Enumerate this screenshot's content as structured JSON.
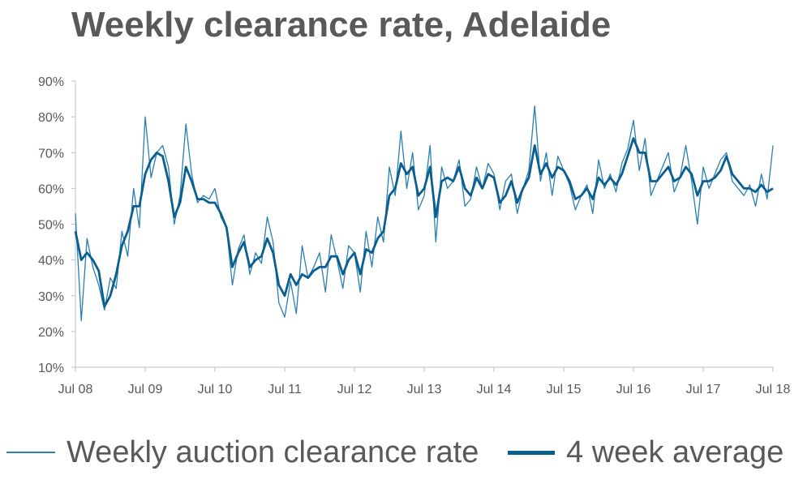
{
  "colors": {
    "weekly": "#2a7fb5",
    "average": "#0b5f8f",
    "axis": "#bfbfbf",
    "text": "#595959"
  },
  "chart_data": {
    "type": "line",
    "title": "Weekly clearance rate, Adelaide",
    "xlabel": "",
    "ylabel": "",
    "y_ticks": [
      "10%",
      "20%",
      "30%",
      "40%",
      "50%",
      "60%",
      "70%",
      "80%",
      "90%"
    ],
    "ylim": [
      10,
      90
    ],
    "x_ticks": [
      "Jul 08",
      "Jul 09",
      "Jul 10",
      "Jul 11",
      "Jul 12",
      "Jul 13",
      "Jul 14",
      "Jul 15",
      "Jul 16",
      "Jul 17",
      "Jul 18"
    ],
    "xlim": [
      "2008-07",
      "2018-07"
    ],
    "grid": false,
    "legend_position": "bottom",
    "series": [
      {
        "name": "Weekly auction clearance rate",
        "x": [
          "2008-07",
          "2008-08",
          "2008-09",
          "2008-10",
          "2008-11",
          "2008-12",
          "2009-01",
          "2009-02",
          "2009-03",
          "2009-04",
          "2009-05",
          "2009-06",
          "2009-07",
          "2009-08",
          "2009-09",
          "2009-10",
          "2009-11",
          "2009-12",
          "2010-01",
          "2010-02",
          "2010-03",
          "2010-04",
          "2010-05",
          "2010-06",
          "2010-07",
          "2010-08",
          "2010-09",
          "2010-10",
          "2010-11",
          "2010-12",
          "2011-01",
          "2011-02",
          "2011-03",
          "2011-04",
          "2011-05",
          "2011-06",
          "2011-07",
          "2011-08",
          "2011-09",
          "2011-10",
          "2011-11",
          "2011-12",
          "2012-01",
          "2012-02",
          "2012-03",
          "2012-04",
          "2012-05",
          "2012-06",
          "2012-07",
          "2012-08",
          "2012-09",
          "2012-10",
          "2012-11",
          "2012-12",
          "2013-01",
          "2013-02",
          "2013-03",
          "2013-04",
          "2013-05",
          "2013-06",
          "2013-07",
          "2013-08",
          "2013-09",
          "2013-10",
          "2013-11",
          "2013-12",
          "2014-01",
          "2014-02",
          "2014-03",
          "2014-04",
          "2014-05",
          "2014-06",
          "2014-07",
          "2014-08",
          "2014-09",
          "2014-10",
          "2014-11",
          "2014-12",
          "2015-01",
          "2015-02",
          "2015-03",
          "2015-04",
          "2015-05",
          "2015-06",
          "2015-07",
          "2015-08",
          "2015-09",
          "2015-10",
          "2015-11",
          "2015-12",
          "2016-01",
          "2016-02",
          "2016-03",
          "2016-04",
          "2016-05",
          "2016-06",
          "2016-07",
          "2016-08",
          "2016-09",
          "2016-10",
          "2016-11",
          "2016-12",
          "2017-01",
          "2017-02",
          "2017-03",
          "2017-04",
          "2017-05",
          "2017-06",
          "2017-07",
          "2017-08",
          "2017-09",
          "2017-10",
          "2017-11",
          "2017-12",
          "2018-01",
          "2018-02",
          "2018-03",
          "2018-04",
          "2018-05",
          "2018-06",
          "2018-07"
        ],
        "values": [
          53,
          23,
          46,
          38,
          33,
          26,
          35,
          32,
          48,
          41,
          60,
          49,
          80,
          63,
          70,
          72,
          66,
          50,
          58,
          78,
          64,
          56,
          58,
          57,
          60,
          52,
          49,
          33,
          43,
          47,
          36,
          42,
          39,
          52,
          45,
          28,
          24,
          34,
          25,
          44,
          35,
          38,
          42,
          31,
          47,
          40,
          32,
          44,
          42,
          31,
          48,
          38,
          52,
          45,
          66,
          58,
          76,
          60,
          70,
          54,
          58,
          72,
          45,
          66,
          60,
          62,
          68,
          55,
          57,
          66,
          60,
          67,
          64,
          54,
          62,
          64,
          53,
          60,
          65,
          83,
          62,
          70,
          58,
          69,
          65,
          61,
          54,
          58,
          61,
          53,
          68,
          60,
          64,
          59,
          67,
          71,
          79,
          65,
          74,
          58,
          62,
          66,
          70,
          59,
          63,
          72,
          62,
          50,
          66,
          60,
          64,
          68,
          70,
          62,
          60,
          58,
          61,
          55,
          64,
          57,
          72
        ]
      },
      {
        "name": "4 week average",
        "x": [
          "2008-07",
          "2008-08",
          "2008-09",
          "2008-10",
          "2008-11",
          "2008-12",
          "2009-01",
          "2009-02",
          "2009-03",
          "2009-04",
          "2009-05",
          "2009-06",
          "2009-07",
          "2009-08",
          "2009-09",
          "2009-10",
          "2009-11",
          "2009-12",
          "2010-01",
          "2010-02",
          "2010-03",
          "2010-04",
          "2010-05",
          "2010-06",
          "2010-07",
          "2010-08",
          "2010-09",
          "2010-10",
          "2010-11",
          "2010-12",
          "2011-01",
          "2011-02",
          "2011-03",
          "2011-04",
          "2011-05",
          "2011-06",
          "2011-07",
          "2011-08",
          "2011-09",
          "2011-10",
          "2011-11",
          "2011-12",
          "2012-01",
          "2012-02",
          "2012-03",
          "2012-04",
          "2012-05",
          "2012-06",
          "2012-07",
          "2012-08",
          "2012-09",
          "2012-10",
          "2012-11",
          "2012-12",
          "2013-01",
          "2013-02",
          "2013-03",
          "2013-04",
          "2013-05",
          "2013-06",
          "2013-07",
          "2013-08",
          "2013-09",
          "2013-10",
          "2013-11",
          "2013-12",
          "2014-01",
          "2014-02",
          "2014-03",
          "2014-04",
          "2014-05",
          "2014-06",
          "2014-07",
          "2014-08",
          "2014-09",
          "2014-10",
          "2014-11",
          "2014-12",
          "2015-01",
          "2015-02",
          "2015-03",
          "2015-04",
          "2015-05",
          "2015-06",
          "2015-07",
          "2015-08",
          "2015-09",
          "2015-10",
          "2015-11",
          "2015-12",
          "2016-01",
          "2016-02",
          "2016-03",
          "2016-04",
          "2016-05",
          "2016-06",
          "2016-07",
          "2016-08",
          "2016-09",
          "2016-10",
          "2016-11",
          "2016-12",
          "2017-01",
          "2017-02",
          "2017-03",
          "2017-04",
          "2017-05",
          "2017-06",
          "2017-07",
          "2017-08",
          "2017-09",
          "2017-10",
          "2017-11",
          "2017-12",
          "2018-01",
          "2018-02",
          "2018-03",
          "2018-04",
          "2018-05",
          "2018-06",
          "2018-07"
        ],
        "values": [
          48,
          40,
          42,
          40,
          37,
          27,
          30,
          36,
          44,
          48,
          55,
          55,
          64,
          68,
          70,
          69,
          62,
          52,
          56,
          66,
          62,
          57,
          57,
          56,
          56,
          53,
          49,
          38,
          42,
          45,
          38,
          40,
          41,
          46,
          42,
          33,
          30,
          36,
          33,
          36,
          35,
          37,
          38,
          38,
          41,
          41,
          36,
          40,
          42,
          36,
          43,
          42,
          46,
          48,
          58,
          60,
          67,
          64,
          66,
          58,
          60,
          66,
          52,
          62,
          63,
          62,
          66,
          60,
          58,
          63,
          60,
          64,
          63,
          56,
          58,
          62,
          56,
          60,
          63,
          72,
          64,
          67,
          63,
          66,
          65,
          62,
          57,
          58,
          60,
          57,
          63,
          61,
          63,
          61,
          64,
          69,
          74,
          70,
          70,
          62,
          62,
          64,
          66,
          62,
          63,
          66,
          64,
          58,
          62,
          62,
          63,
          65,
          69,
          64,
          62,
          60,
          60,
          59,
          61,
          59,
          60
        ]
      }
    ]
  },
  "legend": {
    "items": [
      {
        "label": "Weekly auction clearance rate"
      },
      {
        "label": "4 week average"
      }
    ]
  }
}
